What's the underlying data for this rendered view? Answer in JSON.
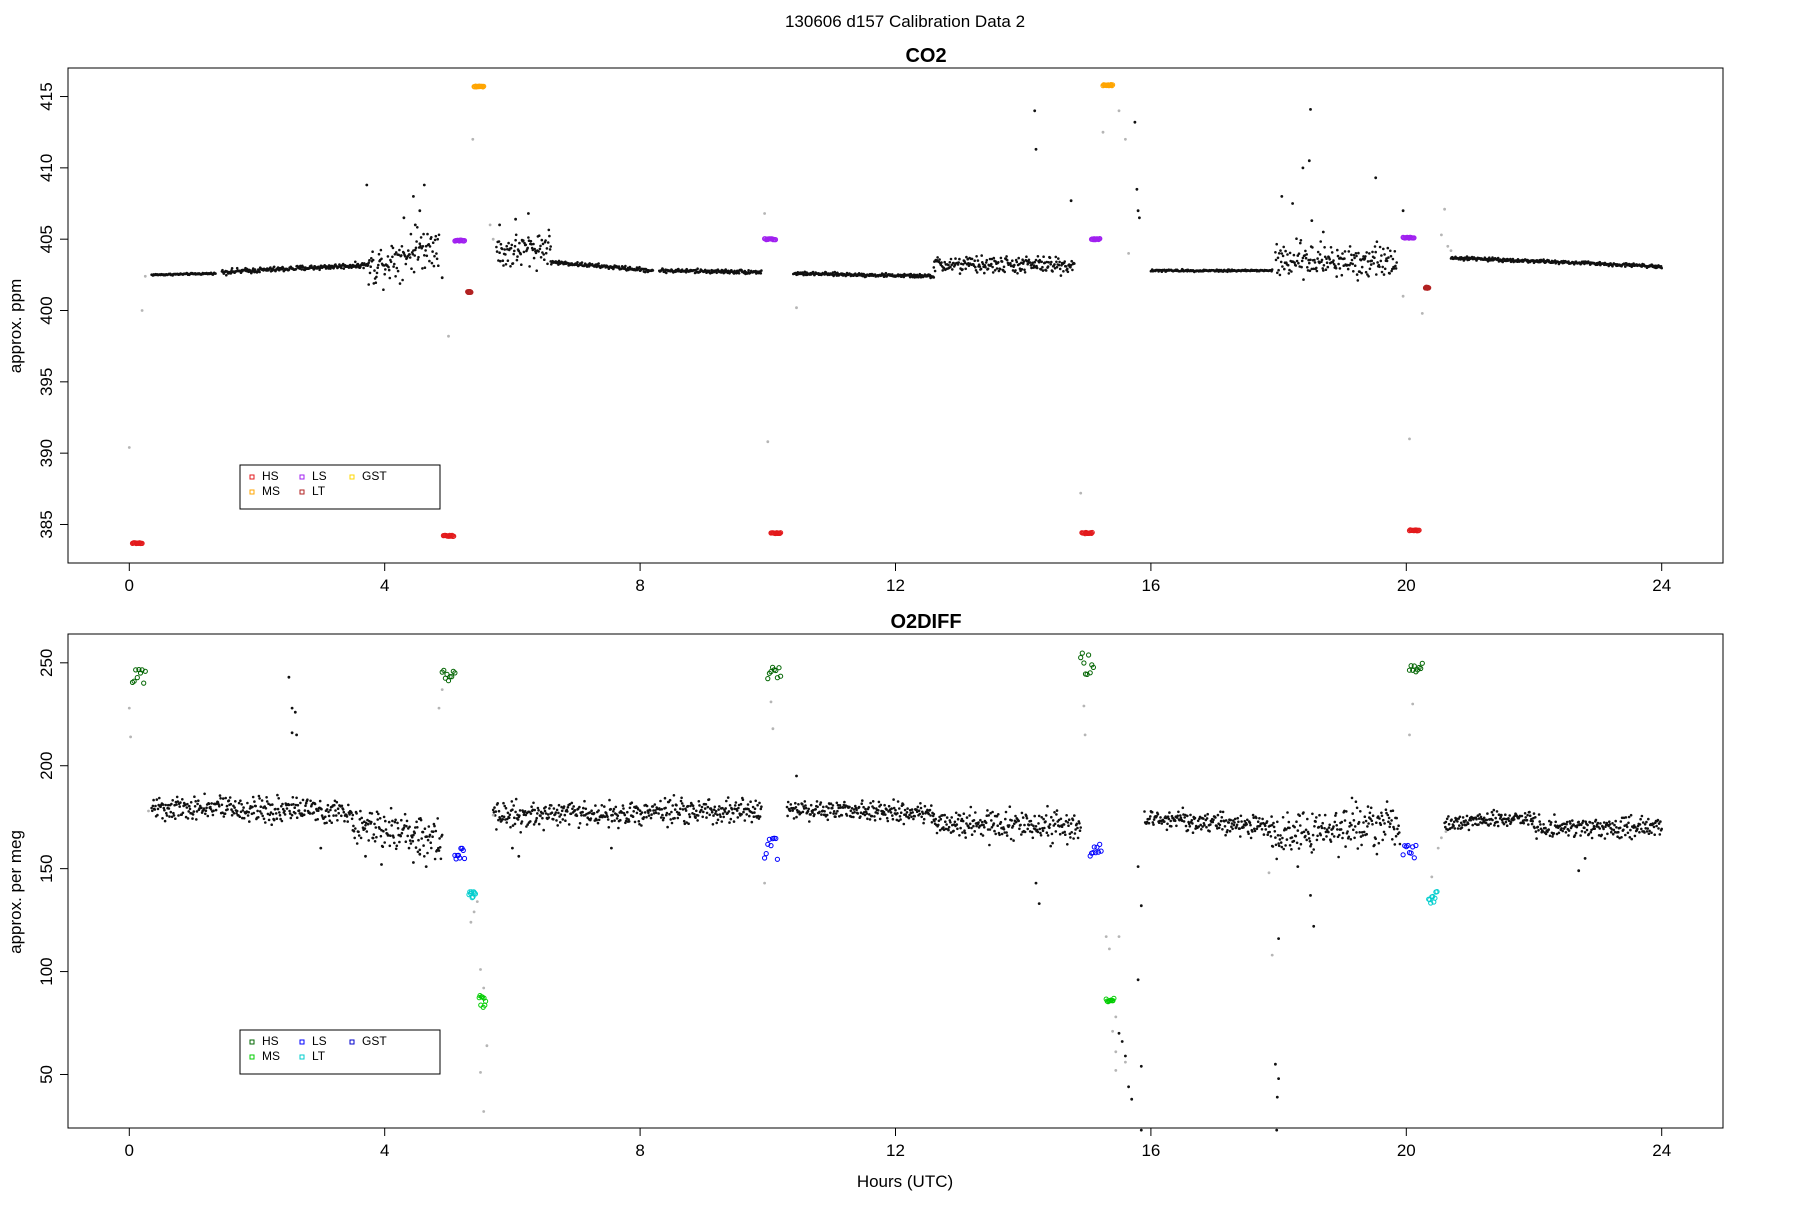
{
  "figure": {
    "title": "130606   d157   Calibration Data 2",
    "xlabel": "Hours (UTC)"
  },
  "chart_data": [
    {
      "type": "scatter",
      "title": "CO2",
      "xlabel": "",
      "ylabel": "approx. ppm",
      "xlim": [
        0,
        24
      ],
      "ylim": [
        382.3,
        417
      ],
      "xticks": [
        0,
        4,
        8,
        12,
        16,
        20,
        24
      ],
      "yticks": [
        385,
        390,
        395,
        400,
        405,
        410,
        415
      ],
      "grid": false,
      "legend": {
        "position": "bottom-left",
        "entries": [
          {
            "label": "HS",
            "color": "#e31a1c"
          },
          {
            "label": "MS",
            "color": "#ffa500"
          },
          {
            "label": "LS",
            "color": "#a020f0"
          },
          {
            "label": "LT",
            "color": "#b22222"
          },
          {
            "label": "GST",
            "color": "#ffd700"
          }
        ]
      },
      "ambient_segments": [
        {
          "x0": 0.35,
          "x1": 1.35,
          "y0": 402.5,
          "y1": 402.6,
          "noise": 0.05
        },
        {
          "x0": 1.45,
          "x1": 3.75,
          "y0": 402.7,
          "y1": 403.2,
          "noise": 0.15
        },
        {
          "x0": 3.75,
          "x1": 4.85,
          "y0": 403.0,
          "y1": 404.8,
          "noise": 1.2
        },
        {
          "x0": 5.75,
          "x1": 6.6,
          "y0": 404.0,
          "y1": 404.5,
          "noise": 1.0
        },
        {
          "x0": 6.6,
          "x1": 8.2,
          "y0": 403.4,
          "y1": 402.8,
          "noise": 0.12
        },
        {
          "x0": 8.3,
          "x1": 9.9,
          "y0": 402.8,
          "y1": 402.7,
          "noise": 0.12
        },
        {
          "x0": 10.4,
          "x1": 12.6,
          "y0": 402.6,
          "y1": 402.4,
          "noise": 0.1
        },
        {
          "x0": 12.6,
          "x1": 14.8,
          "y0": 403.2,
          "y1": 403.2,
          "noise": 0.5
        },
        {
          "x0": 16.0,
          "x1": 17.9,
          "y0": 402.8,
          "y1": 402.8,
          "noise": 0.06
        },
        {
          "x0": 17.95,
          "x1": 19.85,
          "y0": 403.5,
          "y1": 403.5,
          "noise": 1.0
        },
        {
          "x0": 20.7,
          "x1": 24.0,
          "y0": 403.7,
          "y1": 403.1,
          "noise": 0.1
        }
      ],
      "ambient_points": [
        [
          3.72,
          408.8
        ],
        [
          4.45,
          408.0
        ],
        [
          4.62,
          408.8
        ],
        [
          4.55,
          407.0
        ],
        [
          4.3,
          406.5
        ],
        [
          4.48,
          406.0
        ],
        [
          4.9,
          402.3
        ],
        [
          5.8,
          406.0
        ],
        [
          6.05,
          406.4
        ],
        [
          6.25,
          406.8
        ],
        [
          14.18,
          414.0
        ],
        [
          14.2,
          411.3
        ],
        [
          14.75,
          407.7
        ],
        [
          15.75,
          413.2
        ],
        [
          15.78,
          408.5
        ],
        [
          15.8,
          407.0
        ],
        [
          15.82,
          406.5
        ],
        [
          18.05,
          408.0
        ],
        [
          18.22,
          407.5
        ],
        [
          18.38,
          410.0
        ],
        [
          18.48,
          410.5
        ],
        [
          18.5,
          414.1
        ],
        [
          18.52,
          406.3
        ],
        [
          18.7,
          405.5
        ],
        [
          19.52,
          409.3
        ],
        [
          19.95,
          407.0
        ]
      ],
      "transition_points": [
        [
          0.0,
          390.4
        ],
        [
          0.2,
          400.0
        ],
        [
          0.25,
          402.4
        ],
        [
          4.85,
          386.3
        ],
        [
          5.0,
          398.2
        ],
        [
          5.38,
          412.0
        ],
        [
          5.65,
          406.0
        ],
        [
          5.7,
          405.0
        ],
        [
          9.95,
          406.8
        ],
        [
          10.0,
          390.8
        ],
        [
          10.45,
          400.2
        ],
        [
          14.9,
          387.2
        ],
        [
          15.25,
          412.5
        ],
        [
          15.5,
          414.0
        ],
        [
          15.6,
          412.0
        ],
        [
          15.65,
          404.0
        ],
        [
          19.95,
          401.0
        ],
        [
          20.05,
          391.0
        ],
        [
          20.25,
          399.8
        ],
        [
          20.6,
          407.1
        ],
        [
          20.55,
          405.3
        ],
        [
          20.65,
          404.5
        ],
        [
          20.7,
          404.2
        ]
      ],
      "calibration_clusters": [
        {
          "label": "HS",
          "x0": 0.05,
          "x1": 0.2,
          "y": 383.7
        },
        {
          "label": "HS",
          "x0": 4.92,
          "x1": 5.08,
          "y": 384.2
        },
        {
          "label": "HS",
          "x0": 10.05,
          "x1": 10.2,
          "y": 384.4
        },
        {
          "label": "HS",
          "x0": 14.92,
          "x1": 15.08,
          "y": 384.4
        },
        {
          "label": "HS",
          "x0": 20.05,
          "x1": 20.2,
          "y": 384.6
        },
        {
          "label": "MS",
          "x0": 5.4,
          "x1": 5.55,
          "y": 415.7
        },
        {
          "label": "MS",
          "x0": 15.25,
          "x1": 15.4,
          "y": 415.8
        },
        {
          "label": "LS",
          "x0": 5.1,
          "x1": 5.25,
          "y": 404.9
        },
        {
          "label": "LS",
          "x0": 9.95,
          "x1": 10.12,
          "y": 405.0
        },
        {
          "label": "LS",
          "x0": 15.07,
          "x1": 15.2,
          "y": 405.0
        },
        {
          "label": "LS",
          "x0": 19.95,
          "x1": 20.12,
          "y": 405.1
        },
        {
          "label": "LT",
          "x0": 5.3,
          "x1": 5.35,
          "y": 401.3
        },
        {
          "label": "LT",
          "x0": 20.3,
          "x1": 20.35,
          "y": 401.6
        }
      ]
    },
    {
      "type": "scatter",
      "title": "O2DIFF",
      "xlabel": "Hours (UTC)",
      "ylabel": "approx. per meg",
      "xlim": [
        0,
        24
      ],
      "ylim": [
        24,
        264
      ],
      "xticks": [
        0,
        4,
        8,
        12,
        16,
        20,
        24
      ],
      "yticks": [
        50,
        100,
        150,
        200,
        250
      ],
      "grid": false,
      "legend": {
        "position": "bottom-left",
        "entries": [
          {
            "label": "HS",
            "color": "#006400"
          },
          {
            "label": "MS",
            "color": "#00cd00"
          },
          {
            "label": "LS",
            "color": "#0000ff"
          },
          {
            "label": "LT",
            "color": "#00cdcd"
          },
          {
            "label": "GST",
            "color": "#0000cd"
          }
        ]
      },
      "ambient_segments": [
        {
          "x0": 0.35,
          "x1": 3.5,
          "y0": 180,
          "y1": 178,
          "noise": 5
        },
        {
          "x0": 3.5,
          "x1": 4.9,
          "y0": 172,
          "y1": 165,
          "noise": 8
        },
        {
          "x0": 5.7,
          "x1": 9.9,
          "y0": 176,
          "y1": 178,
          "noise": 5
        },
        {
          "x0": 10.3,
          "x1": 12.6,
          "y0": 179,
          "y1": 177,
          "noise": 4
        },
        {
          "x0": 12.6,
          "x1": 14.9,
          "y0": 172,
          "y1": 170,
          "noise": 6
        },
        {
          "x0": 15.9,
          "x1": 17.9,
          "y0": 175,
          "y1": 170,
          "noise": 4
        },
        {
          "x0": 17.9,
          "x1": 19.9,
          "y0": 166,
          "y1": 172,
          "noise": 9
        },
        {
          "x0": 20.6,
          "x1": 22.0,
          "y0": 172,
          "y1": 175,
          "noise": 3
        },
        {
          "x0": 22.0,
          "x1": 24.0,
          "y0": 170,
          "y1": 170,
          "noise": 4
        }
      ],
      "ambient_points": [
        [
          2.5,
          243
        ],
        [
          2.55,
          228
        ],
        [
          2.6,
          226
        ],
        [
          2.55,
          216
        ],
        [
          2.62,
          215
        ],
        [
          3.0,
          160
        ],
        [
          3.7,
          156
        ],
        [
          3.95,
          152
        ],
        [
          4.45,
          153
        ],
        [
          4.55,
          157
        ],
        [
          4.65,
          151
        ],
        [
          6.0,
          160
        ],
        [
          6.1,
          156
        ],
        [
          7.55,
          160
        ],
        [
          10.45,
          195
        ],
        [
          14.2,
          143
        ],
        [
          14.25,
          133
        ],
        [
          15.8,
          151
        ],
        [
          15.85,
          132
        ],
        [
          15.8,
          96
        ],
        [
          15.85,
          54
        ],
        [
          15.85,
          23
        ],
        [
          17.95,
          55
        ],
        [
          18.0,
          48
        ],
        [
          17.98,
          39
        ],
        [
          17.97,
          23
        ],
        [
          18.0,
          116
        ],
        [
          18.3,
          151
        ],
        [
          18.5,
          137
        ],
        [
          18.55,
          122
        ],
        [
          22.7,
          149
        ],
        [
          22.8,
          155
        ],
        [
          15.5,
          70
        ],
        [
          15.55,
          66
        ],
        [
          15.6,
          59
        ],
        [
          15.65,
          44
        ],
        [
          15.7,
          38
        ]
      ],
      "transition_points": [
        [
          0.0,
          228
        ],
        [
          0.02,
          214
        ],
        [
          0.3,
          178
        ],
        [
          4.85,
          228
        ],
        [
          4.9,
          237
        ],
        [
          5.2,
          159
        ],
        [
          5.35,
          124
        ],
        [
          5.4,
          129
        ],
        [
          5.45,
          134
        ],
        [
          5.5,
          101
        ],
        [
          5.55,
          92
        ],
        [
          5.6,
          64
        ],
        [
          5.5,
          51
        ],
        [
          5.55,
          32
        ],
        [
          5.7,
          176
        ],
        [
          9.95,
          143
        ],
        [
          10.05,
          231
        ],
        [
          10.08,
          218
        ],
        [
          14.95,
          229
        ],
        [
          14.97,
          215
        ],
        [
          15.3,
          117
        ],
        [
          15.35,
          111
        ],
        [
          15.5,
          117
        ],
        [
          15.45,
          78
        ],
        [
          15.4,
          71
        ],
        [
          15.45,
          61
        ],
        [
          15.6,
          56
        ],
        [
          15.45,
          52
        ],
        [
          17.9,
          108
        ],
        [
          17.85,
          148
        ],
        [
          20.1,
          230
        ],
        [
          20.05,
          215
        ],
        [
          20.4,
          146
        ],
        [
          20.5,
          160
        ],
        [
          20.55,
          165
        ],
        [
          20.62,
          168
        ]
      ],
      "calibration_clusters": [
        {
          "label": "HS",
          "x0": 0.05,
          "x1": 0.25,
          "y0": 240,
          "y1": 249
        },
        {
          "label": "HS",
          "x0": 4.9,
          "x1": 5.1,
          "y0": 241,
          "y1": 247
        },
        {
          "label": "HS",
          "x0": 10.0,
          "x1": 10.2,
          "y0": 240,
          "y1": 248
        },
        {
          "label": "HS",
          "x0": 14.9,
          "x1": 15.1,
          "y0": 241,
          "y1": 255
        },
        {
          "label": "HS",
          "x0": 20.05,
          "x1": 20.25,
          "y0": 245,
          "y1": 250
        },
        {
          "label": "LS",
          "x0": 5.1,
          "x1": 5.25,
          "y0": 154,
          "y1": 160
        },
        {
          "label": "LS",
          "x0": 9.95,
          "x1": 10.15,
          "y0": 152,
          "y1": 165
        },
        {
          "label": "LS",
          "x0": 15.05,
          "x1": 15.22,
          "y0": 156,
          "y1": 163
        },
        {
          "label": "LS",
          "x0": 19.95,
          "x1": 20.15,
          "y0": 155,
          "y1": 162
        },
        {
          "label": "LT",
          "x0": 5.32,
          "x1": 5.42,
          "y0": 134,
          "y1": 140
        },
        {
          "label": "LT",
          "x0": 20.35,
          "x1": 20.48,
          "y0": 132,
          "y1": 139
        },
        {
          "label": "MS",
          "x0": 5.48,
          "x1": 5.58,
          "y0": 82,
          "y1": 89
        },
        {
          "label": "MS",
          "x0": 15.3,
          "x1": 15.42,
          "y0": 85,
          "y1": 87
        }
      ]
    }
  ]
}
